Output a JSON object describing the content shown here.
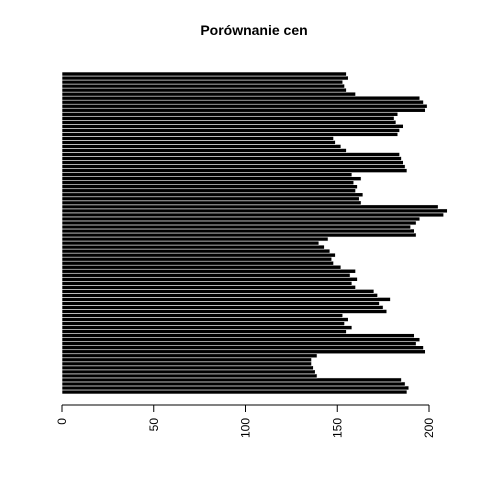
{
  "chart_data": {
    "type": "bar",
    "orientation": "horizontal",
    "title": "Porównanie cen",
    "xlabel": "",
    "ylabel": "",
    "xlim": [
      0,
      210
    ],
    "x_ticks": [
      0,
      50,
      100,
      150,
      200
    ],
    "x_tick_labels": [
      "0",
      "50",
      "100",
      "150",
      "200"
    ],
    "grid": false,
    "legend": "none",
    "bar_color": "#000000",
    "bar_border_color": "#ffffff",
    "values": [
      188,
      189,
      187,
      185,
      139,
      138,
      137,
      136,
      136,
      139,
      198,
      197,
      193,
      195,
      192,
      155,
      158,
      154,
      156,
      153,
      177,
      175,
      173,
      179,
      172,
      170,
      160,
      158,
      161,
      157,
      160,
      152,
      148,
      147,
      149,
      146,
      143,
      140,
      145,
      193,
      192,
      190,
      193,
      195,
      208,
      210,
      205,
      163,
      162,
      164,
      160,
      161,
      159,
      163,
      158,
      188,
      187,
      186,
      185,
      184,
      155,
      152,
      149,
      148,
      183,
      184,
      186,
      182,
      181,
      183,
      198,
      199,
      197,
      195,
      160,
      155,
      154,
      153,
      156,
      155
    ]
  }
}
